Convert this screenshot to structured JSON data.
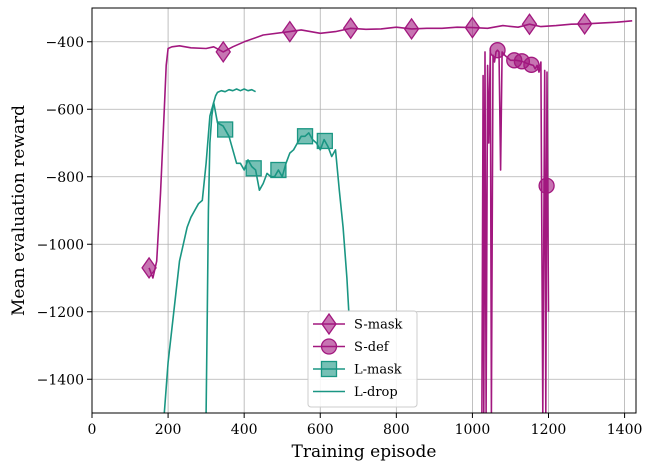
{
  "chart_data": {
    "type": "line",
    "title": "",
    "xlabel": "Training episode",
    "ylabel": "Mean evaluation reward",
    "xlim": [
      0,
      1430
    ],
    "ylim": [
      -1500,
      -300
    ],
    "xticks": [
      0,
      200,
      400,
      600,
      800,
      1000,
      1200,
      1400
    ],
    "yticks": [
      -1400,
      -1200,
      -1000,
      -800,
      -600,
      -400
    ],
    "xtick_labels": [
      "0",
      "200",
      "400",
      "600",
      "800",
      "1000",
      "1200",
      "1400"
    ],
    "ytick_labels": [
      "−1400",
      "−1200",
      "−1000",
      "−800",
      "−600",
      "−400"
    ],
    "grid": true,
    "legend_position": "bottom-center",
    "colors": {
      "magenta": "#a2187f",
      "teal": "#1a9683"
    },
    "series": [
      {
        "name": "S-mask",
        "color": "#a2187f",
        "marker": "diamond",
        "x": [
          150,
          160,
          170,
          180,
          190,
          195,
          200,
          210,
          230,
          260,
          300,
          320,
          345,
          370,
          400,
          450,
          520,
          550,
          600,
          640,
          680,
          720,
          760,
          800,
          840,
          880,
          920,
          960,
          1000,
          1040,
          1080,
          1120,
          1150,
          1180,
          1220,
          1260,
          1295,
          1330,
          1380,
          1420
        ],
        "values": [
          -1070,
          -1100,
          -1050,
          -850,
          -600,
          -470,
          -420,
          -415,
          -412,
          -418,
          -420,
          -415,
          -430,
          -415,
          -400,
          -380,
          -370,
          -365,
          -375,
          -370,
          -360,
          -363,
          -362,
          -357,
          -362,
          -360,
          -360,
          -357,
          -358,
          -360,
          -352,
          -357,
          -348,
          -355,
          -352,
          -348,
          -347,
          -345,
          -342,
          -338
        ],
        "marker_x": [
          150,
          345,
          520,
          680,
          840,
          1000,
          1150,
          1295
        ]
      },
      {
        "name": "S-def",
        "color": "#a2187f",
        "marker": "circle",
        "x": [
          1025,
          1028,
          1030,
          1033,
          1036,
          1040,
          1043,
          1047,
          1050,
          1054,
          1058,
          1062,
          1066,
          1070,
          1074,
          1078,
          1085,
          1100,
          1115,
          1130,
          1145,
          1160,
          1165,
          1170,
          1175,
          1180,
          1185,
          1190,
          1193,
          1196,
          1200
        ],
        "values": [
          -1500,
          -500,
          -1500,
          -430,
          -1500,
          -470,
          -700,
          -420,
          -1500,
          -440,
          -460,
          -430,
          -425,
          -430,
          -780,
          -430,
          -440,
          -455,
          -455,
          -458,
          -465,
          -470,
          -480,
          -470,
          -490,
          -460,
          -1500,
          -485,
          -1500,
          -490,
          -1200
        ],
        "marker_x": [
          1066,
          1110,
          1130,
          1155,
          1195
        ]
      },
      {
        "name": "L-mask",
        "color": "#1a9683",
        "marker": "square",
        "x": [
          190,
          200,
          210,
          220,
          230,
          240,
          250,
          260,
          270,
          280,
          290,
          300,
          310,
          320,
          330,
          345,
          360,
          370,
          380,
          390,
          400,
          410,
          420,
          430,
          440,
          450,
          460,
          470,
          480,
          490,
          500,
          510,
          520,
          530,
          540,
          550,
          560,
          570,
          580,
          590,
          600,
          610,
          620,
          630,
          640,
          650,
          660,
          670,
          675
        ],
        "values": [
          -1500,
          -1350,
          -1250,
          -1150,
          -1050,
          -1000,
          -950,
          -920,
          -900,
          -880,
          -870,
          -760,
          -620,
          -580,
          -640,
          -650,
          -680,
          -720,
          -760,
          -760,
          -780,
          -750,
          -770,
          -780,
          -840,
          -820,
          -790,
          -800,
          -800,
          -780,
          -800,
          -760,
          -730,
          -720,
          -700,
          -680,
          -680,
          -670,
          -690,
          -700,
          -720,
          -690,
          -710,
          -740,
          -720,
          -840,
          -950,
          -1100,
          -1200
        ],
        "marker_x": [
          350,
          425,
          490,
          560,
          612
        ]
      },
      {
        "name": "L-drop",
        "color": "#1a9683",
        "marker": "none",
        "x": [
          300,
          303,
          306,
          310,
          315,
          320,
          325,
          330,
          340,
          350,
          360,
          370,
          380,
          390,
          400,
          410,
          420,
          430
        ],
        "values": [
          -1500,
          -1200,
          -900,
          -700,
          -620,
          -580,
          -560,
          -550,
          -545,
          -548,
          -542,
          -545,
          -540,
          -545,
          -540,
          -545,
          -542,
          -548
        ]
      }
    ]
  }
}
